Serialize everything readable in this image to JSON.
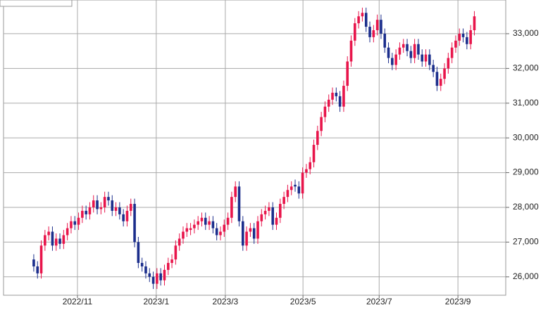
{
  "chart_data": {
    "type": "candlestick",
    "up_color": "#e8154b",
    "down_color": "#1b2e8c",
    "grid": true,
    "xlim": [
      -8.1,
      126.4
    ],
    "xticks": [
      {
        "value": 11.7,
        "label": "2022/11"
      },
      {
        "value": 32.8,
        "label": "2023/1"
      },
      {
        "value": 51.3,
        "label": "2023/3"
      },
      {
        "value": 72.1,
        "label": "2023/5"
      },
      {
        "value": 92.5,
        "label": "2023/7"
      },
      {
        "value": 113.6,
        "label": "2023/9"
      }
    ],
    "ylim": [
      25470,
      33970
    ],
    "yticks": [
      {
        "value": 26000,
        "label": "26,000"
      },
      {
        "value": 27000,
        "label": "27,000"
      },
      {
        "value": 28000,
        "label": "28,000"
      },
      {
        "value": 29000,
        "label": "29,000"
      },
      {
        "value": 30000,
        "label": "30,000"
      },
      {
        "value": 31000,
        "label": "31,000"
      },
      {
        "value": 32000,
        "label": "32,000"
      },
      {
        "value": 33000,
        "label": "33,000"
      }
    ],
    "open": [
      26500,
      26300,
      26100,
      26900,
      27200,
      27300,
      26900,
      27100,
      26950,
      27200,
      27400,
      27600,
      27500,
      27700,
      27900,
      27800,
      28000,
      28200,
      27950,
      28000,
      28300,
      28200,
      27900,
      28000,
      27800,
      27600,
      27900,
      28100,
      27000,
      26400,
      26300,
      26100,
      26000,
      25800,
      26100,
      25900,
      26200,
      26400,
      26500,
      26900,
      27100,
      27300,
      27350,
      27400,
      27500,
      27600,
      27700,
      27500,
      27600,
      27400,
      27200,
      27300,
      27500,
      27700,
      28300,
      28600,
      27600,
      26900,
      27300,
      27400,
      27100,
      27600,
      27800,
      27900,
      28000,
      27500,
      27700,
      28100,
      28300,
      28500,
      28650,
      28600,
      28400,
      29000,
      29100,
      29300,
      29800,
      30200,
      30600,
      30900,
      31100,
      31300,
      31200,
      30900,
      31500,
      32200,
      32800,
      33300,
      33500,
      33600,
      33200,
      32900,
      33100,
      33400,
      33000,
      32600,
      32300,
      32100,
      32400,
      32600,
      32700,
      32500,
      32300,
      32700,
      32400,
      32200,
      32400,
      32100,
      31900,
      31500,
      31700,
      32000,
      32300,
      32600,
      32800,
      33000,
      32900,
      32700,
      33100
    ],
    "high": [
      26650,
      26450,
      27050,
      27350,
      27450,
      27450,
      27250,
      27250,
      27350,
      27550,
      27750,
      27750,
      27850,
      28050,
      28050,
      28150,
      28350,
      28350,
      28150,
      28450,
      28450,
      28350,
      28150,
      28150,
      27950,
      28050,
      28250,
      28250,
      27150,
      26550,
      26450,
      26250,
      26150,
      26250,
      26250,
      26350,
      26550,
      26650,
      27050,
      27250,
      27450,
      27550,
      27550,
      27650,
      27750,
      27850,
      27850,
      27750,
      27750,
      27550,
      27450,
      27650,
      27850,
      28450,
      28750,
      28750,
      27750,
      27450,
      27550,
      27550,
      27750,
      27950,
      28050,
      28150,
      28150,
      27850,
      28250,
      28450,
      28650,
      28750,
      28800,
      28750,
      29150,
      29250,
      29450,
      29950,
      30350,
      30750,
      31050,
      31250,
      31450,
      31450,
      31350,
      31650,
      32350,
      32950,
      33450,
      33650,
      33750,
      33750,
      33350,
      33250,
      33550,
      33550,
      33150,
      32750,
      32450,
      32550,
      32750,
      32850,
      32850,
      32650,
      32850,
      32850,
      32550,
      32550,
      32550,
      32250,
      32050,
      31850,
      32150,
      32450,
      32750,
      32950,
      33150,
      33150,
      33050,
      33250,
      33650
    ],
    "low": [
      26150,
      25950,
      25950,
      26750,
      27050,
      26750,
      26750,
      26800,
      26800,
      27050,
      27250,
      27350,
      27350,
      27550,
      27650,
      27650,
      27850,
      27800,
      27800,
      27850,
      28050,
      27750,
      27750,
      27650,
      27450,
      27450,
      27750,
      26850,
      26250,
      26150,
      25950,
      25850,
      25650,
      25650,
      25750,
      25750,
      26050,
      26250,
      26350,
      26750,
      26950,
      27150,
      27200,
      27250,
      27350,
      27450,
      27350,
      27350,
      27250,
      27050,
      27050,
      27150,
      27350,
      27550,
      28150,
      27450,
      26750,
      26750,
      27150,
      26950,
      26950,
      27450,
      27650,
      27750,
      27350,
      27350,
      27550,
      27950,
      28150,
      28350,
      28450,
      28250,
      28250,
      28850,
      28950,
      29150,
      29650,
      30050,
      30450,
      30750,
      30950,
      31050,
      30750,
      30750,
      31350,
      32050,
      32650,
      33150,
      33350,
      33050,
      32750,
      32750,
      32950,
      32850,
      32450,
      32150,
      31950,
      31950,
      32250,
      32450,
      32350,
      32150,
      32150,
      32250,
      32050,
      32050,
      31950,
      31750,
      31350,
      31350,
      31550,
      31850,
      32150,
      32450,
      32650,
      32750,
      32550,
      32550,
      32950
    ],
    "close": [
      26300,
      26100,
      26900,
      27200,
      27300,
      26900,
      27100,
      26950,
      27200,
      27400,
      27600,
      27500,
      27700,
      27900,
      27800,
      28000,
      28200,
      27950,
      28000,
      28300,
      28200,
      27900,
      28000,
      27800,
      27600,
      27900,
      28100,
      27000,
      26400,
      26300,
      26100,
      26000,
      25800,
      26100,
      25900,
      26200,
      26400,
      26500,
      26900,
      27100,
      27300,
      27400,
      27400,
      27500,
      27600,
      27700,
      27500,
      27600,
      27400,
      27200,
      27300,
      27500,
      27700,
      28300,
      28600,
      27600,
      26900,
      27300,
      27400,
      27100,
      27600,
      27800,
      27900,
      28000,
      27500,
      27700,
      28100,
      28300,
      28500,
      28600,
      28600,
      28400,
      29000,
      29100,
      29300,
      29800,
      30200,
      30600,
      30900,
      31100,
      31300,
      31200,
      30900,
      31500,
      32200,
      32800,
      33300,
      33500,
      33600,
      33200,
      32900,
      33100,
      33400,
      33000,
      32600,
      32300,
      32100,
      32400,
      32600,
      32700,
      32500,
      32300,
      32700,
      32400,
      32200,
      32400,
      32100,
      31900,
      31500,
      31700,
      32000,
      32300,
      32600,
      32800,
      33000,
      32900,
      32700,
      33100,
      33500
    ]
  }
}
